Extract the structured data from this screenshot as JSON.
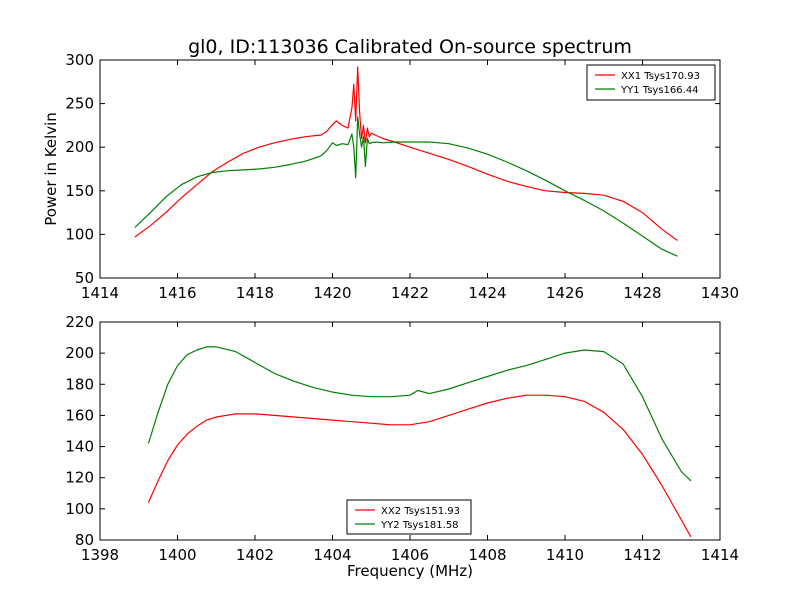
{
  "title": "gl0, ID:113036 Calibrated On-source spectrum",
  "chart_data": [
    {
      "type": "line",
      "title": "gl0, ID:113036 Calibrated On-source spectrum",
      "xlabel": "",
      "ylabel": "Power in Kelvin",
      "xlim": [
        1414,
        1430
      ],
      "ylim": [
        50,
        300
      ],
      "xticks": [
        1414,
        1416,
        1418,
        1420,
        1422,
        1424,
        1426,
        1428,
        1430
      ],
      "yticks": [
        50,
        100,
        150,
        200,
        250,
        300
      ],
      "legend_position": "top-right",
      "grid": false,
      "series": [
        {
          "name": "XX1 Tsys170.93",
          "color": "#ff0000",
          "x": [
            1414.9,
            1415.3,
            1415.7,
            1416.1,
            1416.5,
            1416.9,
            1417.3,
            1417.7,
            1418.1,
            1418.5,
            1418.9,
            1419.3,
            1419.7,
            1419.85,
            1420.0,
            1420.1,
            1420.25,
            1420.4,
            1420.5,
            1420.55,
            1420.6,
            1420.65,
            1420.7,
            1420.75,
            1420.8,
            1420.85,
            1420.9,
            1420.95,
            1421.0,
            1421.1,
            1421.3,
            1421.6,
            1422.0,
            1422.5,
            1423.0,
            1423.5,
            1424.0,
            1424.5,
            1425.0,
            1425.5,
            1426.0,
            1426.5,
            1427.0,
            1427.5,
            1428.0,
            1428.5,
            1428.9
          ],
          "values": [
            97,
            110,
            125,
            142,
            157,
            172,
            183,
            193,
            200,
            205,
            209,
            212,
            214,
            218,
            226,
            230,
            225,
            222,
            245,
            272,
            230,
            292,
            240,
            210,
            225,
            205,
            222,
            212,
            216,
            214,
            210,
            206,
            200,
            193,
            186,
            178,
            169,
            161,
            155,
            150,
            148,
            147,
            145,
            138,
            125,
            106,
            93
          ]
        },
        {
          "name": "YY1 Tsys166.44",
          "color": "#008000",
          "x": [
            1414.9,
            1415.3,
            1415.7,
            1416.1,
            1416.5,
            1416.9,
            1417.3,
            1417.7,
            1418.1,
            1418.5,
            1418.9,
            1419.3,
            1419.7,
            1419.85,
            1420.0,
            1420.1,
            1420.25,
            1420.4,
            1420.5,
            1420.55,
            1420.6,
            1420.65,
            1420.7,
            1420.75,
            1420.8,
            1420.85,
            1420.9,
            1420.95,
            1421.0,
            1421.1,
            1421.3,
            1421.6,
            1422.0,
            1422.5,
            1423.0,
            1423.5,
            1424.0,
            1424.5,
            1425.0,
            1425.5,
            1426.0,
            1426.5,
            1427.0,
            1427.5,
            1428.0,
            1428.5,
            1428.9
          ],
          "values": [
            108,
            125,
            143,
            157,
            166,
            171,
            173,
            174,
            175,
            177,
            180,
            184,
            190,
            196,
            205,
            202,
            204,
            203,
            215,
            200,
            165,
            235,
            215,
            200,
            212,
            178,
            210,
            204,
            205,
            206,
            205,
            206,
            206,
            206,
            204,
            199,
            192,
            183,
            173,
            162,
            150,
            139,
            127,
            113,
            98,
            83,
            75
          ]
        }
      ]
    },
    {
      "type": "line",
      "title": "",
      "xlabel": "Frequency (MHz)",
      "ylabel": "",
      "xlim": [
        1398,
        1414
      ],
      "ylim": [
        80,
        220
      ],
      "xticks": [
        1398,
        1400,
        1402,
        1404,
        1406,
        1408,
        1410,
        1412,
        1414
      ],
      "yticks": [
        80,
        100,
        120,
        140,
        160,
        180,
        200,
        220
      ],
      "legend_position": "bottom-center",
      "grid": false,
      "series": [
        {
          "name": "XX2 Tsys151.93",
          "color": "#ff0000",
          "x": [
            1399.25,
            1399.5,
            1399.75,
            1400.0,
            1400.25,
            1400.5,
            1400.75,
            1401.0,
            1401.5,
            1402.0,
            1402.5,
            1403.0,
            1403.5,
            1404.0,
            1404.5,
            1405.0,
            1405.5,
            1406.0,
            1406.5,
            1407.0,
            1407.5,
            1408.0,
            1408.5,
            1409.0,
            1409.5,
            1410.0,
            1410.5,
            1411.0,
            1411.5,
            1412.0,
            1412.5,
            1413.0,
            1413.25
          ],
          "values": [
            104,
            118,
            131,
            141,
            148,
            153,
            157,
            159,
            161,
            161,
            160,
            159,
            158,
            157,
            156,
            155,
            154,
            154,
            156,
            160,
            164,
            168,
            171,
            173,
            173,
            172,
            169,
            162,
            151,
            135,
            115,
            93,
            82
          ]
        },
        {
          "name": "YY2 Tsys181.58",
          "color": "#008000",
          "x": [
            1399.25,
            1399.5,
            1399.75,
            1400.0,
            1400.25,
            1400.5,
            1400.75,
            1401.0,
            1401.5,
            1402.0,
            1402.5,
            1403.0,
            1403.5,
            1404.0,
            1404.5,
            1405.0,
            1405.5,
            1406.0,
            1406.2,
            1406.5,
            1407.0,
            1407.5,
            1408.0,
            1408.5,
            1409.0,
            1409.5,
            1410.0,
            1410.5,
            1411.0,
            1411.5,
            1412.0,
            1412.5,
            1413.0,
            1413.25
          ],
          "values": [
            142,
            162,
            180,
            192,
            199,
            202,
            204,
            204,
            201,
            194,
            187,
            182,
            178,
            175,
            173,
            172,
            172,
            173,
            176,
            174,
            177,
            181,
            185,
            189,
            192,
            196,
            200,
            202,
            201,
            193,
            172,
            145,
            124,
            118
          ]
        }
      ]
    }
  ]
}
